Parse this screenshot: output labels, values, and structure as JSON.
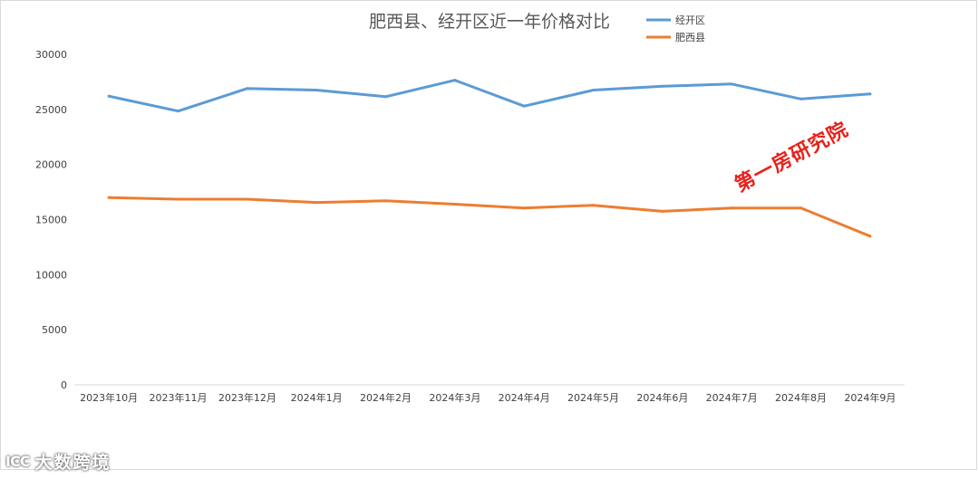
{
  "chart_data": {
    "type": "line",
    "title": "肥西县、经开区近一年价格对比",
    "xlabel": "",
    "ylabel": "",
    "categories": [
      "2023年10月",
      "2023年11月",
      "2023年12月",
      "2024年1月",
      "2024年2月",
      "2024年3月",
      "2024年4月",
      "2024年5月",
      "2024年6月",
      "2024年7月",
      "2024年8月",
      "2024年9月"
    ],
    "series": [
      {
        "name": "经开区",
        "color": "#5b9bd5",
        "values": [
          26200,
          24850,
          26900,
          26750,
          26150,
          27650,
          25300,
          26750,
          27100,
          27300,
          25950,
          26400
        ]
      },
      {
        "name": "肥西县",
        "color": "#ed7d31",
        "values": [
          17000,
          16850,
          16850,
          16550,
          16700,
          16400,
          16050,
          16300,
          15750,
          16050,
          16050,
          13500
        ]
      }
    ],
    "ylim": [
      0,
      30000
    ],
    "yticks": [
      0,
      5000,
      10000,
      15000,
      20000,
      25000,
      30000
    ],
    "grid": false,
    "legend": "top-right"
  },
  "watermark": "第一房研究院",
  "brand": {
    "logo": "ICC",
    "name": "大数跨境"
  }
}
